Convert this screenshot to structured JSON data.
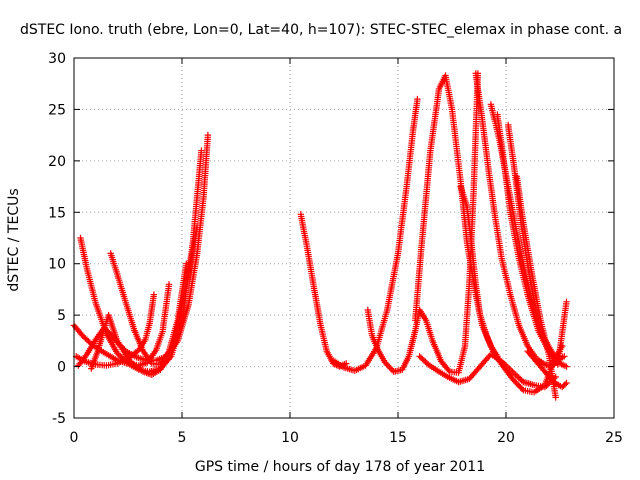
{
  "chart_data": {
    "type": "scatter",
    "title": "dSTEC Iono. truth (ebre, Lon=0, Lat=40, h=107): STEC-STEC_elemax in phase cont. a",
    "xlabel": "GPS time / hours of day 178 of year 2011",
    "ylabel": "dSTEC  / TECUs",
    "xlim": [
      0,
      25
    ],
    "ylim": [
      -5,
      30
    ],
    "xticks": [
      0,
      5,
      10,
      15,
      20,
      25
    ],
    "yticks": [
      -5,
      0,
      5,
      10,
      15,
      20,
      25,
      30
    ],
    "xtick_labels": [
      "0",
      "5",
      "10",
      "15",
      "20",
      "25"
    ],
    "ytick_labels": [
      "-5",
      "0",
      "5",
      "10",
      "15",
      "20",
      "25",
      "30"
    ],
    "grid": true,
    "marker": "+",
    "color": "#ff0000",
    "arcs": [
      {
        "x": [
          0.0,
          0.4,
          0.8,
          1.2,
          1.6,
          2.0,
          2.5,
          3.0,
          3.4,
          3.8,
          4.1,
          4.4
        ],
        "y": [
          4.0,
          3.0,
          2.2,
          1.6,
          1.1,
          0.6,
          0.3,
          0.1,
          0.4,
          1.6,
          3.4,
          8.0
        ]
      },
      {
        "x": [
          0.1,
          0.5,
          1.0,
          1.5,
          2.0,
          2.5,
          3.0,
          3.3,
          3.5,
          3.7
        ],
        "y": [
          1.0,
          0.5,
          0.2,
          0.1,
          0.3,
          0.8,
          1.6,
          2.6,
          4.2,
          7.0
        ]
      },
      {
        "x": [
          0.2,
          0.6,
          1.0,
          1.4,
          1.9,
          2.4,
          2.9,
          3.4,
          3.8,
          4.3,
          4.8,
          5.3,
          5.7,
          6.0,
          6.2
        ],
        "y": [
          0.1,
          1.2,
          2.6,
          3.8,
          2.6,
          1.5,
          0.9,
          0.6,
          0.6,
          1.0,
          2.5,
          6.0,
          11.0,
          16.5,
          22.5
        ]
      },
      {
        "x": [
          0.3,
          0.6,
          1.0,
          1.5,
          2.0,
          2.5,
          3.0,
          3.5,
          4.0,
          4.5,
          5.0,
          5.5,
          5.9
        ],
        "y": [
          12.5,
          9.5,
          6.2,
          3.2,
          1.3,
          0.3,
          -0.3,
          -0.5,
          -0.2,
          1.0,
          4.5,
          12.0,
          21.0
        ]
      },
      {
        "x": [
          0.8,
          1.1,
          1.3,
          1.6,
          2.0,
          2.6,
          3.2,
          3.6,
          4.0,
          4.6,
          5.0,
          5.4,
          5.7
        ],
        "y": [
          -0.2,
          1.5,
          3.0,
          5.0,
          2.5,
          0.5,
          -0.5,
          -0.8,
          -0.3,
          2.0,
          6.0,
          10.0,
          13.5
        ]
      },
      {
        "x": [
          1.7,
          2.0,
          2.4,
          2.8,
          3.2,
          3.6,
          4.0,
          4.4,
          4.8,
          5.2
        ],
        "y": [
          11.0,
          9.0,
          6.2,
          3.5,
          1.5,
          0.3,
          0.2,
          1.5,
          4.5,
          10.0
        ]
      },
      {
        "x": [
          10.5,
          10.8,
          11.1,
          11.4,
          11.7,
          12.0,
          12.3,
          12.6
        ],
        "y": [
          14.8,
          11.5,
          7.8,
          4.2,
          1.5,
          0.3,
          0.0,
          0.3
        ]
      },
      {
        "x": [
          12.0,
          12.5,
          13.0,
          13.5,
          14.0,
          14.5,
          15.0,
          15.4,
          15.7,
          15.9
        ],
        "y": [
          0.6,
          -0.1,
          -0.4,
          0.1,
          1.8,
          5.5,
          11.0,
          17.5,
          23.0,
          26.0
        ]
      },
      {
        "x": [
          13.6,
          13.8,
          14.1,
          14.4,
          14.8,
          15.2,
          15.5,
          15.8,
          16.0,
          16.3,
          16.6,
          17.0,
          17.4,
          17.8,
          18.1,
          18.3,
          18.5,
          18.7
        ],
        "y": [
          5.5,
          3.0,
          1.5,
          0.4,
          -0.5,
          -0.3,
          1.0,
          3.5,
          5.5,
          4.5,
          2.5,
          0.5,
          -0.5,
          -0.6,
          2.0,
          8.0,
          17.0,
          28.5
        ]
      },
      {
        "x": [
          15.8,
          16.1,
          16.5,
          16.9,
          17.2,
          17.5,
          17.9,
          18.2,
          18.6,
          18.9,
          19.3,
          19.6
        ],
        "y": [
          4.5,
          12.0,
          21.0,
          27.0,
          28.3,
          25.0,
          18.0,
          12.0,
          7.0,
          4.0,
          2.0,
          1.0
        ]
      },
      {
        "x": [
          16.0,
          16.4,
          16.9,
          17.3,
          17.8,
          18.3,
          18.8,
          19.3,
          19.8,
          20.3,
          20.8,
          21.3,
          21.8,
          22.3
        ],
        "y": [
          1.0,
          0.2,
          -0.5,
          -1.0,
          -1.5,
          -1.2,
          0.0,
          1.2,
          0.5,
          -0.5,
          -1.5,
          -1.8,
          -2.0,
          -1.0
        ]
      },
      {
        "x": [
          17.9,
          18.2,
          18.4,
          18.6,
          18.8,
          19.1,
          19.4,
          19.8,
          20.3,
          20.8,
          21.3,
          21.8,
          22.2,
          22.6
        ],
        "y": [
          17.5,
          15.5,
          12.0,
          8.0,
          5.0,
          3.0,
          1.5,
          0.2,
          -1.2,
          -2.3,
          -2.5,
          -1.8,
          0.5,
          2.0
        ]
      },
      {
        "x": [
          18.6,
          18.9,
          19.2,
          19.5,
          19.8,
          20.2,
          20.6,
          21.0,
          21.4,
          21.8,
          22.1,
          22.4
        ],
        "y": [
          28.5,
          24.0,
          19.0,
          14.5,
          10.5,
          7.0,
          4.0,
          2.0,
          0.8,
          0.2,
          0.0,
          0.5
        ]
      },
      {
        "x": [
          19.3,
          19.7,
          20.1,
          20.5,
          20.9,
          21.3,
          21.7,
          22.1,
          22.5,
          22.8
        ],
        "y": [
          25.5,
          22.0,
          17.5,
          13.0,
          9.0,
          5.5,
          3.0,
          1.5,
          0.3,
          0.0
        ]
      },
      {
        "x": [
          19.6,
          19.9,
          20.2,
          20.6,
          21.0,
          21.5,
          21.9,
          22.3,
          22.7
        ],
        "y": [
          24.5,
          20.0,
          15.0,
          10.5,
          7.0,
          3.5,
          1.8,
          0.5,
          1.0
        ]
      },
      {
        "x": [
          20.1,
          20.4,
          20.7,
          21.0,
          21.3,
          21.6,
          22.0,
          22.4,
          22.8
        ],
        "y": [
          23.5,
          19.0,
          14.0,
          10.0,
          6.5,
          3.5,
          1.5,
          0.2,
          6.3
        ]
      },
      {
        "x": [
          20.5,
          20.8,
          21.2,
          21.6,
          22.0,
          22.3
        ],
        "y": [
          18.5,
          14.0,
          9.0,
          4.5,
          1.0,
          -3.0
        ]
      },
      {
        "x": [
          21.0,
          21.4,
          21.8,
          22.2,
          22.6,
          22.8
        ],
        "y": [
          1.5,
          0.5,
          -0.5,
          -1.5,
          -2.0,
          -1.6
        ]
      }
    ]
  }
}
